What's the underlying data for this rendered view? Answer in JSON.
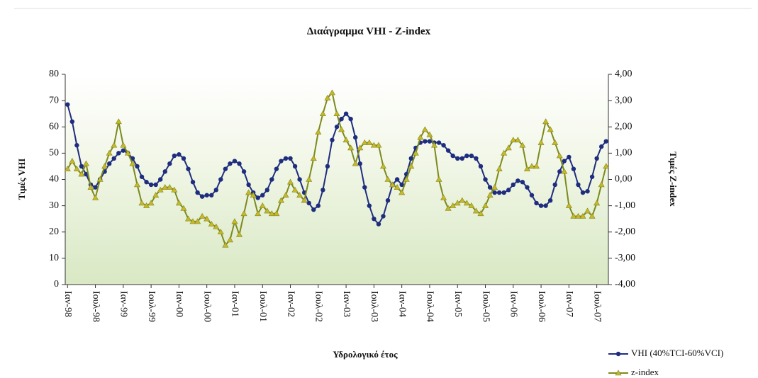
{
  "chart_data": {
    "type": "line",
    "title": "Διαάγραμμα VHI - Z-index",
    "xlabel": "Υδρολογικό έτος",
    "ylabel": "Τιμές VHI",
    "y2label": "Τιμές Z-index",
    "categories": [
      "Ιαν-98",
      null,
      null,
      null,
      null,
      null,
      "Ιουλ-98",
      null,
      null,
      null,
      null,
      null,
      "Ιαν-99",
      null,
      null,
      null,
      null,
      null,
      "Ιουλ-99",
      null,
      null,
      null,
      null,
      null,
      "Ιαν-00",
      null,
      null,
      null,
      null,
      null,
      "Ιουλ-00",
      null,
      null,
      null,
      null,
      null,
      "Ιαν-01",
      null,
      null,
      null,
      null,
      null,
      "Ιουλ-01",
      null,
      null,
      null,
      null,
      null,
      "Ιαν-02",
      null,
      null,
      null,
      null,
      null,
      "Ιουλ-02",
      null,
      null,
      null,
      null,
      null,
      "Ιαν-03",
      null,
      null,
      null,
      null,
      null,
      "Ιουλ-03",
      null,
      null,
      null,
      null,
      null,
      "Ιαν-04",
      null,
      null,
      null,
      null,
      null,
      "Ιουλ-04",
      null,
      null,
      null,
      null,
      null,
      "Ιαν-05",
      null,
      null,
      null,
      null,
      null,
      "Ιουλ-05",
      null,
      null,
      null,
      null,
      null,
      "Ιαν-06",
      null,
      null,
      null,
      null,
      null,
      "Ιουλ-06",
      null,
      null,
      null,
      null,
      null,
      "Ιαν-07",
      null,
      null,
      null,
      null,
      null,
      "Ιουλ-07",
      null,
      null
    ],
    "series": [
      {
        "name": "VHI (40%TCI-60%VCI)",
        "color": "#1f2d7f",
        "marker": "circle",
        "axis": "y",
        "values": [
          68.5,
          62,
          53,
          45,
          42,
          38,
          37,
          40,
          43,
          46,
          48,
          50,
          51,
          50,
          48,
          45,
          41,
          39,
          38,
          38,
          40,
          43,
          46,
          49,
          49.5,
          48,
          44,
          39,
          35,
          33.5,
          34,
          34,
          36,
          40,
          44,
          46,
          47,
          46,
          43,
          38,
          35,
          33,
          34,
          36,
          40,
          44,
          47,
          48,
          48,
          45,
          40,
          35,
          31,
          28.5,
          30,
          36,
          45,
          55,
          60,
          63,
          65,
          63,
          56,
          46,
          37,
          30,
          25,
          23,
          26,
          32,
          38,
          40,
          38,
          42,
          48,
          52,
          54,
          54.5,
          54.5,
          54,
          54,
          53,
          51,
          49,
          48,
          48,
          49,
          49,
          48,
          45,
          40,
          37,
          35,
          35,
          35,
          36,
          38,
          39.5,
          39,
          37,
          34,
          31,
          30,
          30,
          32,
          38,
          43,
          47,
          48.5,
          44,
          38,
          35,
          35.5,
          41,
          48,
          52.5,
          54.5
        ]
      },
      {
        "name": "z-index",
        "color": "#7d8a1c",
        "marker": "triangle",
        "axis": "y2",
        "values": [
          0.4,
          0.7,
          0.4,
          0.2,
          0.6,
          -0.3,
          -0.7,
          0,
          0.5,
          1.0,
          1.3,
          2.2,
          1.3,
          1.0,
          0.6,
          -0.2,
          -0.9,
          -1.0,
          -0.9,
          -0.6,
          -0.4,
          -0.3,
          -0.3,
          -0.4,
          -0.9,
          -1.1,
          -1.5,
          -1.6,
          -1.6,
          -1.4,
          -1.5,
          -1.7,
          -1.8,
          -2.0,
          -2.5,
          -2.3,
          -1.6,
          -2.1,
          -1.3,
          -0.5,
          -0.6,
          -1.3,
          -1.0,
          -1.2,
          -1.3,
          -1.3,
          -0.8,
          -0.6,
          -0.1,
          -0.4,
          -0.6,
          -0.8,
          0,
          0.8,
          1.8,
          2.5,
          3.1,
          3.3,
          2.5,
          1.9,
          1.5,
          1.2,
          0.6,
          1.2,
          1.4,
          1.4,
          1.3,
          1.3,
          0.5,
          0,
          -0.2,
          -0.3,
          -0.5,
          0,
          0.5,
          1.0,
          1.6,
          1.9,
          1.7,
          1.3,
          0,
          -0.7,
          -1.1,
          -1.0,
          -0.9,
          -0.8,
          -0.9,
          -1.0,
          -1.2,
          -1.3,
          -1.0,
          -0.6,
          -0.3,
          0.4,
          1.0,
          1.2,
          1.5,
          1.5,
          1.3,
          0.4,
          0.5,
          0.5,
          1.4,
          2.2,
          1.9,
          1.4,
          0.9,
          0.3,
          -1.0,
          -1.4,
          -1.4,
          -1.4,
          -1.2,
          -1.4,
          -0.9,
          -0.2,
          0.5
        ]
      }
    ],
    "ylim": [
      0,
      80
    ],
    "yticks": [
      0,
      10,
      20,
      30,
      40,
      50,
      60,
      70,
      80
    ],
    "y2lim": [
      -4,
      4
    ],
    "y2ticks": [
      {
        "value": -4,
        "label": "-4,00"
      },
      {
        "value": -3,
        "label": "-3,00"
      },
      {
        "value": -2,
        "label": "-2,00"
      },
      {
        "value": -1,
        "label": "-1,00"
      },
      {
        "value": 0,
        "label": "0,00"
      },
      {
        "value": 1,
        "label": "1,00"
      },
      {
        "value": 2,
        "label": "2,00"
      },
      {
        "value": 3,
        "label": "3,00"
      },
      {
        "value": 4,
        "label": "4,00"
      }
    ],
    "legend": "bottom-right"
  }
}
